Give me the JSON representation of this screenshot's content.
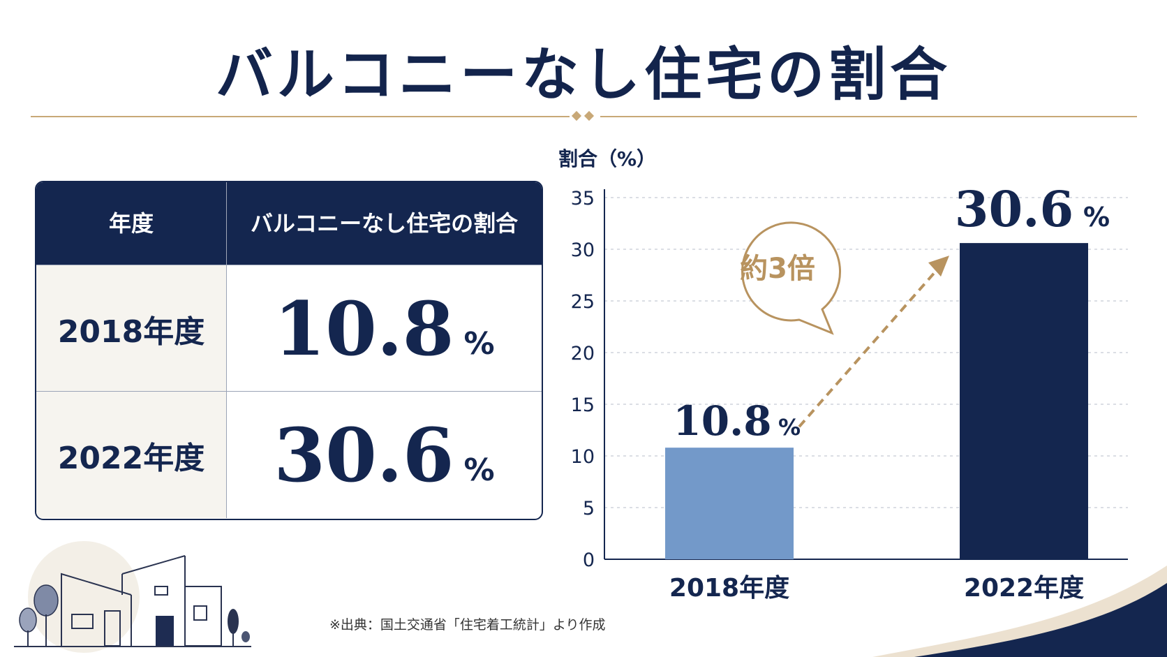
{
  "title": "バルコニーなし住宅の割合",
  "table": {
    "header_year": "年度",
    "header_value": "バルコニーなし住宅の割合",
    "rows": [
      {
        "year": "2018年度",
        "value": "10.8",
        "unit": "%"
      },
      {
        "year": "2022年度",
        "value": "30.6",
        "unit": "%"
      }
    ]
  },
  "source": "※出典：国土交通省「住宅着工統計」より作成",
  "colors": {
    "navy": "#14264f",
    "light_blue": "#7399c9",
    "gold": "#b8935f"
  },
  "chart_data": {
    "type": "bar",
    "ylabel": "割合（%）",
    "categories": [
      "2018年度",
      "2022年度"
    ],
    "values": [
      10.8,
      30.6
    ],
    "value_labels": [
      "10.8",
      "30.6"
    ],
    "unit": "%",
    "ylim": [
      0,
      35
    ],
    "yticks": [
      0,
      5,
      10,
      15,
      20,
      25,
      30,
      35
    ],
    "grid": true,
    "annotation": "約3倍"
  }
}
